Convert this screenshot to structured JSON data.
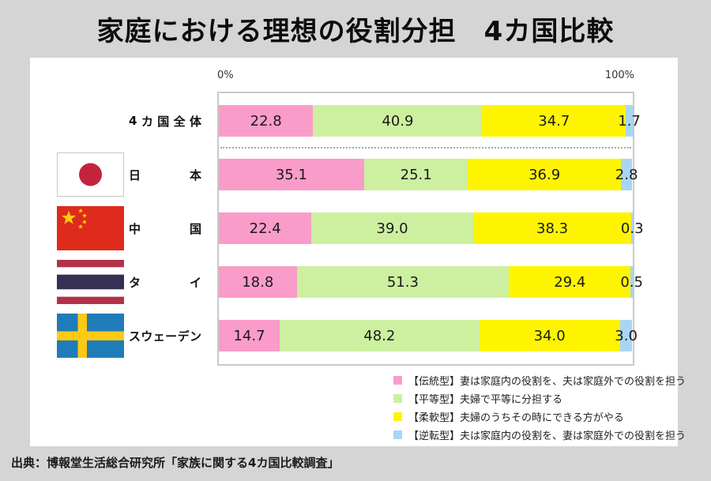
{
  "source": "出典：博報堂生活総合研究所「家族に関する4カ国比較調査」",
  "chart_data": {
    "type": "bar",
    "orientation": "horizontal",
    "stacked": true,
    "title": "家庭における理想の役割分担　4カ国比較",
    "axis_labels": {
      "left": "0%",
      "right": "100%"
    },
    "xlim": [
      0,
      100
    ],
    "unit": "%",
    "grid": false,
    "legend_position": "bottom-right",
    "categories": [
      "4カ国全体",
      "日本",
      "中国",
      "タイ",
      "スウェーデン"
    ],
    "category_flags": [
      null,
      "japan",
      "china",
      "thailand",
      "sweden"
    ],
    "separator_after_category": "4カ国全体",
    "series": [
      {
        "name": "伝統型",
        "legend_label": "【伝統型】妻は家庭内の役割を、夫は家庭外での役割を担う",
        "color": "#FA9CC9",
        "values": [
          22.8,
          35.1,
          22.4,
          18.8,
          14.7
        ]
      },
      {
        "name": "平等型",
        "legend_label": "【平等型】夫婦で平等に分担する",
        "color": "#CCF0A0",
        "values": [
          40.9,
          25.1,
          39.0,
          51.3,
          48.2
        ]
      },
      {
        "name": "柔軟型",
        "legend_label": "【柔軟型】夫婦のうちその時にできる方がやる",
        "color": "#FFF400",
        "values": [
          34.7,
          36.9,
          38.3,
          29.4,
          34.0
        ]
      },
      {
        "name": "逆転型",
        "legend_label": "【逆転型】夫は家庭内の役割を、妻は家庭外での役割を担う",
        "color": "#A9D5F5",
        "values": [
          1.7,
          2.8,
          0.3,
          0.5,
          3.0
        ]
      }
    ]
  },
  "flag_colors": {
    "japan": {
      "field": "#FFFFFF",
      "disc": "#C3233C"
    },
    "china": {
      "field": "#DF2B1C",
      "star": "#FCD00E"
    },
    "thailand": {
      "red": "#B23349",
      "white": "#FFFFFF",
      "navy": "#343154"
    },
    "sweden": {
      "field": "#1F7CB8",
      "cross": "#FDC913"
    }
  }
}
